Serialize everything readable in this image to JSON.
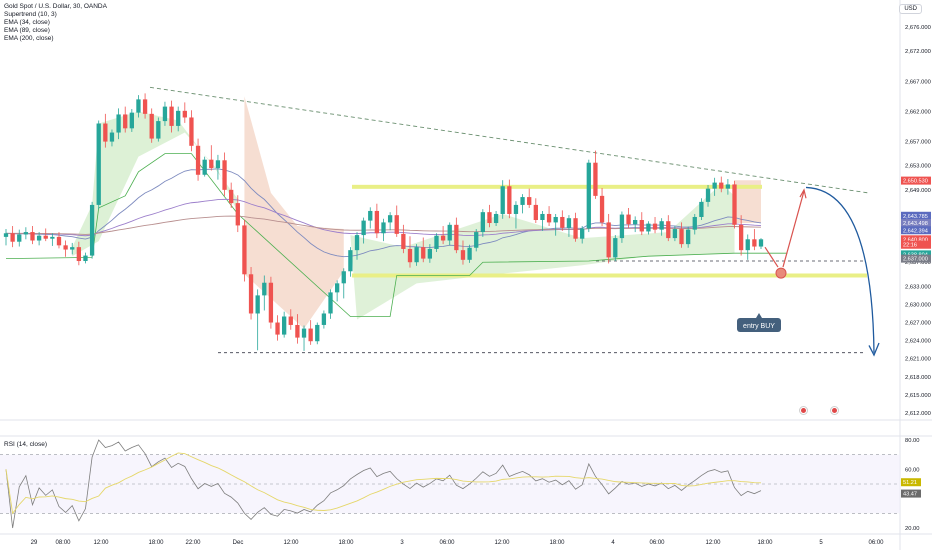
{
  "legend": {
    "symbol": "Gold Spot / U.S. Dollar, 30, OANDA",
    "indicators": [
      "Supertrend (10, 3)",
      "EMA (34, close)",
      "EMA (89, close)",
      "EMA (200, close)"
    ]
  },
  "currency_button": "USD",
  "rsi_legend": "RSI (14, close)",
  "annotation": "entry BUY",
  "colors": {
    "up": "#26a69a",
    "down": "#ef5350",
    "supertrend_up_fill": "#d9efd1",
    "supertrend_down_fill": "#f5dcd0",
    "support_zone": "#e9ef86",
    "arrow_buy": "#d9534f",
    "arrow_down": "#2962ff"
  },
  "chart_data": {
    "type": "candlestick",
    "price_axis_labels": [
      "2,676.000",
      "2,672.000",
      "2,667.000",
      "2,662.000",
      "2,657.000",
      "2,653.000",
      "2,649.000",
      "2,645.000",
      "2,641.000",
      "2,637.000",
      "2,633.000",
      "2,630.000",
      "2,627.000",
      "2,624.000",
      "2,621.000",
      "2,618.000",
      "2,615.000",
      "2,612.000"
    ],
    "price_tags": [
      {
        "label": "2,650.530",
        "value": 2650.53,
        "color": "#ef5350"
      },
      {
        "label": "2,643.785",
        "value": 2644.7,
        "color": "#5b6bbf"
      },
      {
        "label": "2,643.498",
        "value": 2643.5,
        "color": "#7a7fbf"
      },
      {
        "label": "2,642.394",
        "value": 2642.3,
        "color": "#5b6bbf"
      },
      {
        "label": "2,640.800",
        "value": 2640.8,
        "color": "#ef5350"
      },
      {
        "label": "22:16",
        "value": 2639.9,
        "color": "#ef5350"
      },
      {
        "label": "2,638.804",
        "value": 2638.3,
        "color": "#26a69a"
      },
      {
        "label": "2,637.000",
        "value": 2637.6,
        "color": "#787b86"
      }
    ],
    "x_axis_labels": [
      "29",
      "08:00",
      "12:00",
      "18:00",
      "22:00",
      "Dec",
      "12:00",
      "18:00",
      "3",
      "06:00",
      "12:00",
      "18:00",
      "4",
      "06:00",
      "12:00",
      "18:00",
      "5",
      "06:00"
    ],
    "resistance_level": 2649.5,
    "support_level": 2634.8,
    "lower_target_level": 2622.0,
    "trendline": {
      "start": 2666.0,
      "end": 2648.5
    },
    "candles_ohlc": [
      [
        2641.2,
        2642.5,
        2639.8,
        2641.8
      ],
      [
        2641.8,
        2643.0,
        2639.5,
        2640.4
      ],
      [
        2640.4,
        2642.4,
        2639.6,
        2641.6
      ],
      [
        2641.6,
        2642.8,
        2640.8,
        2642.0
      ],
      [
        2642.0,
        2643.0,
        2640.0,
        2640.6
      ],
      [
        2640.6,
        2642.0,
        2639.8,
        2641.4
      ],
      [
        2641.4,
        2642.6,
        2640.5,
        2640.9
      ],
      [
        2640.9,
        2641.8,
        2639.7,
        2641.2
      ],
      [
        2641.2,
        2642.0,
        2639.3,
        2639.8
      ],
      [
        2639.8,
        2640.6,
        2637.9,
        2639.1
      ],
      [
        2639.1,
        2640.2,
        2638.3,
        2639.5
      ],
      [
        2639.5,
        2640.4,
        2636.5,
        2637.2
      ],
      [
        2637.2,
        2638.6,
        2636.8,
        2638.1
      ],
      [
        2638.1,
        2647.0,
        2637.6,
        2646.5
      ],
      [
        2646.5,
        2660.5,
        2645.8,
        2660.0
      ],
      [
        2660.0,
        2661.6,
        2656.0,
        2657.0
      ],
      [
        2657.0,
        2659.0,
        2656.2,
        2658.5
      ],
      [
        2658.5,
        2662.5,
        2657.4,
        2661.5
      ],
      [
        2661.5,
        2662.8,
        2658.5,
        2659.2
      ],
      [
        2659.2,
        2662.4,
        2658.6,
        2661.8
      ],
      [
        2661.8,
        2664.7,
        2661.0,
        2664.0
      ],
      [
        2664.0,
        2665.0,
        2660.8,
        2661.6
      ],
      [
        2661.6,
        2662.5,
        2656.8,
        2657.5
      ],
      [
        2657.5,
        2661.0,
        2657.0,
        2660.4
      ],
      [
        2660.4,
        2663.6,
        2659.6,
        2662.8
      ],
      [
        2662.8,
        2663.8,
        2658.5,
        2659.6
      ],
      [
        2659.6,
        2662.8,
        2658.7,
        2662.1
      ],
      [
        2662.1,
        2663.5,
        2660.1,
        2661.0
      ],
      [
        2661.0,
        2662.2,
        2655.4,
        2656.3
      ],
      [
        2656.3,
        2657.5,
        2650.5,
        2651.5
      ],
      [
        2651.5,
        2654.5,
        2651.2,
        2654.0
      ],
      [
        2654.0,
        2656.4,
        2652.2,
        2652.6
      ],
      [
        2652.6,
        2654.8,
        2650.7,
        2653.9
      ],
      [
        2653.9,
        2655.2,
        2648.0,
        2649.0
      ],
      [
        2649.0,
        2650.2,
        2646.0,
        2646.8
      ],
      [
        2646.8,
        2648.1,
        2642.0,
        2643.1
      ],
      [
        2643.1,
        2644.0,
        2633.8,
        2635.0
      ],
      [
        2635.0,
        2636.2,
        2627.5,
        2628.5
      ],
      [
        2628.5,
        2632.5,
        2622.4,
        2631.5
      ],
      [
        2631.5,
        2634.8,
        2629.0,
        2633.6
      ],
      [
        2633.6,
        2634.6,
        2626.0,
        2627.0
      ],
      [
        2627.0,
        2628.2,
        2624.0,
        2625.0
      ],
      [
        2625.0,
        2628.8,
        2624.5,
        2628.0
      ],
      [
        2628.0,
        2629.2,
        2625.8,
        2626.6
      ],
      [
        2626.6,
        2628.4,
        2623.5,
        2624.5
      ],
      [
        2624.5,
        2626.5,
        2622.3,
        2626.0
      ],
      [
        2626.0,
        2627.4,
        2623.3,
        2623.9
      ],
      [
        2623.9,
        2627.0,
        2623.4,
        2626.6
      ],
      [
        2626.6,
        2629.0,
        2626.0,
        2628.5
      ],
      [
        2628.5,
        2632.5,
        2627.6,
        2632.0
      ],
      [
        2632.0,
        2634.0,
        2630.5,
        2633.5
      ],
      [
        2633.5,
        2636.0,
        2631.0,
        2635.5
      ],
      [
        2635.5,
        2639.5,
        2634.6,
        2639.0
      ],
      [
        2639.0,
        2642.0,
        2637.4,
        2641.5
      ],
      [
        2641.5,
        2644.4,
        2640.1,
        2643.9
      ],
      [
        2643.9,
        2646.1,
        2642.6,
        2645.5
      ],
      [
        2645.5,
        2646.7,
        2641.0,
        2641.8
      ],
      [
        2641.8,
        2644.2,
        2640.5,
        2643.6
      ],
      [
        2643.6,
        2645.3,
        2642.3,
        2644.8
      ],
      [
        2644.8,
        2646.4,
        2641.2,
        2641.7
      ],
      [
        2641.7,
        2643.2,
        2638.5,
        2639.2
      ],
      [
        2639.2,
        2641.3,
        2636.1,
        2637.0
      ],
      [
        2637.0,
        2640.0,
        2636.4,
        2639.5
      ],
      [
        2639.5,
        2641.1,
        2637.0,
        2637.6
      ],
      [
        2637.6,
        2640.0,
        2636.9,
        2639.2
      ],
      [
        2639.2,
        2641.8,
        2638.7,
        2641.4
      ],
      [
        2641.4,
        2643.0,
        2640.0,
        2640.6
      ],
      [
        2640.6,
        2643.6,
        2639.8,
        2643.2
      ],
      [
        2643.2,
        2644.4,
        2638.5,
        2639.0
      ],
      [
        2639.0,
        2640.6,
        2636.6,
        2637.4
      ],
      [
        2637.4,
        2639.9,
        2636.9,
        2639.4
      ],
      [
        2639.4,
        2642.5,
        2638.8,
        2642.0
      ],
      [
        2642.0,
        2645.8,
        2641.2,
        2645.3
      ],
      [
        2645.3,
        2646.5,
        2642.8,
        2643.5
      ],
      [
        2643.5,
        2645.5,
        2643.0,
        2645.0
      ],
      [
        2645.0,
        2650.6,
        2644.2,
        2649.6
      ],
      [
        2649.6,
        2650.7,
        2644.3,
        2645.0
      ],
      [
        2645.0,
        2647.1,
        2642.6,
        2646.5
      ],
      [
        2646.5,
        2648.3,
        2645.1,
        2647.8
      ],
      [
        2647.8,
        2649.2,
        2646.0,
        2646.5
      ],
      [
        2646.5,
        2647.6,
        2643.5,
        2644.0
      ],
      [
        2644.0,
        2645.5,
        2642.2,
        2645.0
      ],
      [
        2645.0,
        2646.3,
        2643.0,
        2643.6
      ],
      [
        2643.6,
        2645.0,
        2641.4,
        2644.5
      ],
      [
        2644.5,
        2645.6,
        2642.2,
        2642.7
      ],
      [
        2642.7,
        2644.8,
        2641.2,
        2644.3
      ],
      [
        2644.3,
        2645.2,
        2640.4,
        2640.9
      ],
      [
        2640.9,
        2643.0,
        2640.1,
        2642.6
      ],
      [
        2642.6,
        2654.0,
        2642.0,
        2653.5
      ],
      [
        2653.5,
        2655.5,
        2647.5,
        2648.0
      ],
      [
        2648.0,
        2649.3,
        2643.0,
        2643.6
      ],
      [
        2643.6,
        2645.0,
        2636.8,
        2637.8
      ],
      [
        2637.8,
        2641.5,
        2637.2,
        2641.0
      ],
      [
        2641.0,
        2645.4,
        2640.2,
        2644.9
      ],
      [
        2644.9,
        2646.0,
        2642.7,
        2643.3
      ],
      [
        2643.3,
        2644.6,
        2642.0,
        2644.0
      ],
      [
        2644.0,
        2645.3,
        2641.5,
        2642.1
      ],
      [
        2642.1,
        2643.8,
        2641.6,
        2643.4
      ],
      [
        2643.4,
        2644.5,
        2641.8,
        2642.4
      ],
      [
        2642.4,
        2644.3,
        2641.4,
        2643.8
      ],
      [
        2643.8,
        2644.8,
        2640.5,
        2641.0
      ],
      [
        2641.0,
        2643.0,
        2640.5,
        2642.5
      ],
      [
        2642.5,
        2643.6,
        2639.4,
        2640.0
      ],
      [
        2640.0,
        2642.9,
        2639.4,
        2642.4
      ],
      [
        2642.4,
        2645.0,
        2641.6,
        2644.5
      ],
      [
        2644.5,
        2647.6,
        2644.0,
        2647.0
      ],
      [
        2647.0,
        2649.8,
        2646.2,
        2649.2
      ],
      [
        2649.2,
        2651.0,
        2648.0,
        2650.2
      ],
      [
        2650.2,
        2651.2,
        2648.6,
        2649.2
      ],
      [
        2649.2,
        2650.8,
        2648.2,
        2649.9
      ],
      [
        2649.9,
        2650.5,
        2642.6,
        2643.2
      ],
      [
        2643.2,
        2644.8,
        2638.1,
        2639.0
      ],
      [
        2639.0,
        2641.6,
        2637.4,
        2640.8
      ],
      [
        2640.8,
        2642.5,
        2639.0,
        2639.6
      ],
      [
        2639.6,
        2641.0,
        2639.2,
        2640.8
      ]
    ],
    "rsi": {
      "axis_labels": [
        "80.00",
        "60.00",
        "20.00"
      ],
      "levels": [
        70,
        50,
        30
      ],
      "tags": [
        {
          "label": "51.21",
          "value": 51.21
        },
        {
          "label": "43.47",
          "value": 43.47
        }
      ]
    }
  }
}
